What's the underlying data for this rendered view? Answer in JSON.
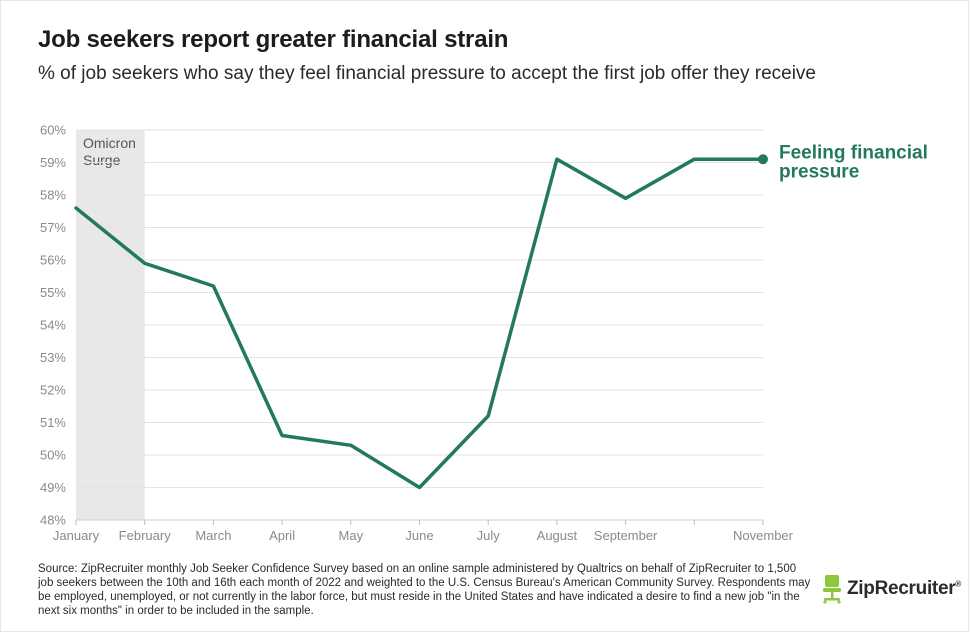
{
  "title": "Job seekers report greater financial strain",
  "subtitle": "% of job seekers who say they feel financial pressure to accept the first job offer they receive",
  "source": "Source: ZipRecruiter monthly Job Seeker Confidence Survey based on an online sample administered by Qualtrics on behalf of ZipRecruiter to 1,500 job seekers between the 10th and 16th each month of 2022 and weighted to the U.S. Census Bureau's American Community Survey. Respondents may be employed, unemployed, or not currently in the labor force, but must reside in the United States and have indicated a desire to find a new job \"in the next six months\" in order to be included in the sample.",
  "logo": {
    "text": "ZipRecruiter",
    "mark": "®",
    "icon": "office-chair-icon"
  },
  "colors": {
    "line": "#237a5b",
    "band": "#e8e8e8",
    "grid": "#e3e3e3"
  },
  "chart_data": {
    "type": "line",
    "title": "Job seekers report greater financial strain",
    "subtitle": "% of job seekers who say they feel financial pressure to accept the first job offer they receive",
    "x_ticks": [
      "January",
      "February",
      "March",
      "April",
      "May",
      "June",
      "July",
      "August",
      "September",
      "",
      "November"
    ],
    "y_ticks": [
      "48%",
      "49%",
      "50%",
      "51%",
      "52%",
      "53%",
      "54%",
      "55%",
      "56%",
      "57%",
      "58%",
      "59%",
      "60%"
    ],
    "ylim": [
      48,
      60
    ],
    "grid": true,
    "shaded_band": {
      "label_line1": "Omicron",
      "label_line2": "Surge",
      "x_start": 0,
      "x_end": 1
    },
    "series": [
      {
        "name": "Feeling financial pressure",
        "label_line1": "Feeling financial",
        "label_line2": "pressure",
        "x": [
          0,
          1,
          2,
          3,
          4,
          5,
          6,
          7,
          8,
          9,
          10
        ],
        "values": [
          57.6,
          55.9,
          55.2,
          50.6,
          50.3,
          49.0,
          51.2,
          59.1,
          57.9,
          59.1,
          59.1
        ]
      }
    ]
  }
}
